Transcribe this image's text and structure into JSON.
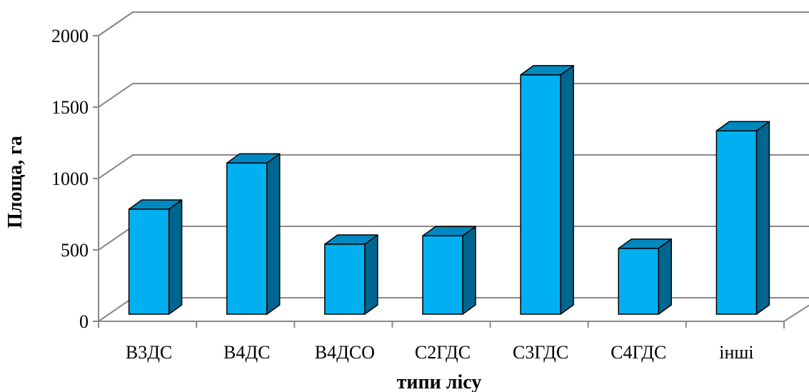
{
  "chart_data": {
    "type": "bar",
    "categories": [
      "B3ДC",
      "B4ДC",
      "B4ДCO",
      "C2ГДC",
      "C3ГДC",
      "C4ГДC",
      "інші"
    ],
    "values": [
      750,
      1080,
      500,
      560,
      1710,
      470,
      1310
    ],
    "title": "",
    "xlabel": "типи лісу",
    "ylabel": "Площа, га",
    "ylim": [
      0,
      2000
    ],
    "yticks": [
      0,
      500,
      1000,
      1500,
      2000
    ],
    "grid": true,
    "legend": "none",
    "style": "3d-column",
    "colors": {
      "bar_front": "#00b0f0",
      "bar_top": "#0088c0",
      "bar_side": "#00668f",
      "grid": "#898989"
    }
  }
}
